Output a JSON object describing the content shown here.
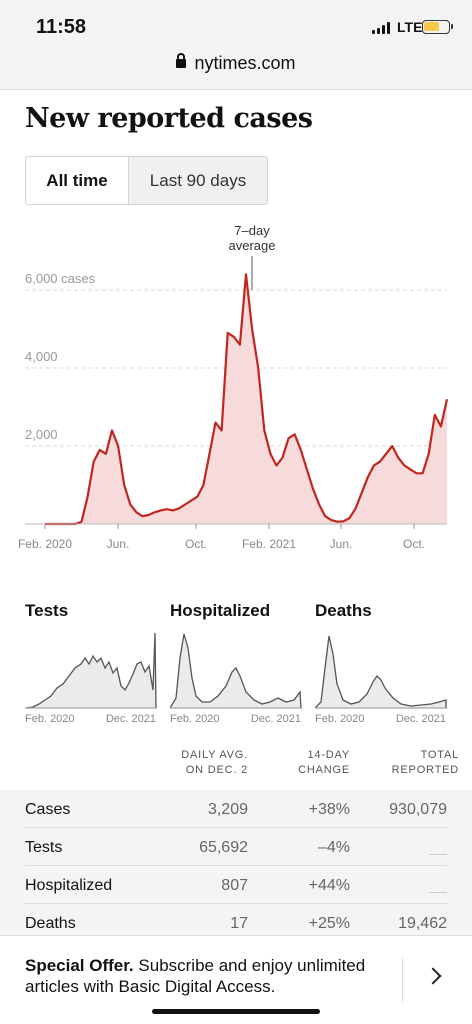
{
  "status": {
    "time": "11:58",
    "network": "LTE"
  },
  "browser": {
    "url": "nytimes.com"
  },
  "page": {
    "title": "New reported cases"
  },
  "tabs": [
    {
      "label": "All time",
      "active": true
    },
    {
      "label": "Last 90 days",
      "active": false
    }
  ],
  "main_chart": {
    "annotation_line1": "7–day",
    "annotation_line2": "average",
    "y_labels": [
      "6,000 cases",
      "4,000",
      "2,000"
    ],
    "x_labels": [
      "Feb. 2020",
      "Jun.",
      "Oct.",
      "Feb. 2021",
      "Jun.",
      "Oct."
    ]
  },
  "small_multiples": [
    {
      "title": "Tests",
      "x_start": "Feb. 2020",
      "x_end": "Dec. 2021"
    },
    {
      "title": "Hospitalized",
      "x_start": "Feb. 2020",
      "x_end": "Dec. 2021"
    },
    {
      "title": "Deaths",
      "x_start": "Feb. 2020",
      "x_end": "Dec. 2021"
    }
  ],
  "table": {
    "headers": {
      "daily_1": "DAILY AVG.",
      "daily_2": "ON DEC. 2",
      "change_1": "14-DAY",
      "change_2": "CHANGE",
      "total_1": "TOTAL",
      "total_2": "REPORTED"
    },
    "rows": [
      {
        "name": "Cases",
        "daily": "3,209",
        "change": "+38%",
        "total": "930,079"
      },
      {
        "name": "Tests",
        "daily": "65,692",
        "change": "–4%",
        "total": ""
      },
      {
        "name": "Hospitalized",
        "daily": "807",
        "change": "+44%",
        "total": ""
      },
      {
        "name": "Deaths",
        "daily": "17",
        "change": "+25%",
        "total": "19,462"
      }
    ]
  },
  "offer": {
    "bold": "Special Offer.",
    "text": " Subscribe and enjoy unlimited articles with Basic Digital Access."
  },
  "chart_data": {
    "type": "area",
    "x_ticks": [
      "Feb. 2020",
      "Jun.",
      "Oct.",
      "Feb. 2021",
      "Jun.",
      "Oct."
    ],
    "y_ticks": [
      2000,
      4000,
      6000
    ],
    "ylim": [
      0,
      6000
    ],
    "series": [
      {
        "values": [
          0,
          0,
          0,
          0,
          0,
          0,
          60,
          700,
          1600,
          1900,
          1800,
          2400,
          2000,
          1000,
          500,
          300,
          200,
          230,
          300,
          350,
          380,
          350,
          400,
          500,
          600,
          700,
          1000,
          1800,
          2600,
          2400,
          4900,
          4800,
          4600,
          6400,
          5000,
          4000,
          2400,
          1800,
          1500,
          1700,
          2200,
          2300,
          1900,
          1400,
          900,
          500,
          200,
          100,
          60,
          70,
          150,
          400,
          800,
          1200,
          1500,
          1600,
          1800,
          2000,
          1700,
          1500,
          1400,
          1300,
          1300,
          1800,
          2800,
          2500,
          3200
        ]
      }
    ]
  },
  "colors": {
    "accent": "#c0261d",
    "fill": "#f7dada",
    "grid": "#d7d7d7"
  }
}
